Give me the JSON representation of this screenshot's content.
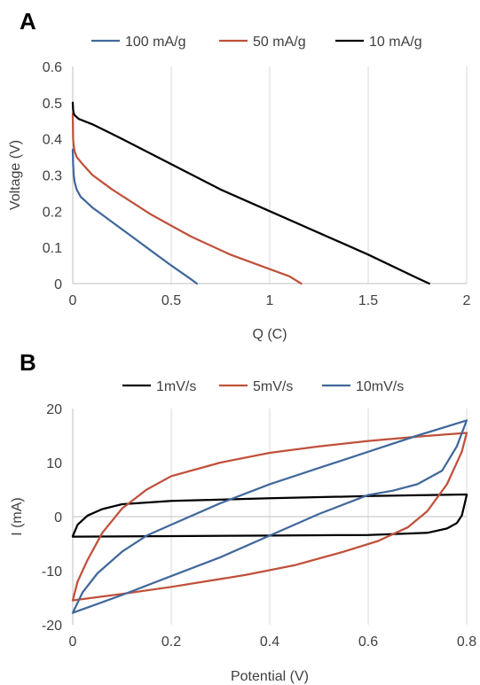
{
  "chart_data": [
    {
      "panel_label": "A",
      "type": "line",
      "title": "",
      "xlabel": "Q (C)",
      "ylabel": "Voltage (V)",
      "xlim": [
        0,
        2
      ],
      "ylim": [
        0,
        0.6
      ],
      "xticks": [
        "0",
        "0.5",
        "1",
        "1.5",
        "2"
      ],
      "yticks": [
        "0",
        "0.1",
        "0.2",
        "0.3",
        "0.4",
        "0.5",
        "0.6"
      ],
      "grid": "vertical",
      "legend": "top",
      "series": [
        {
          "name": "100 mA/g",
          "color": "#41689b",
          "x": [
            0.0,
            0.002,
            0.005,
            0.01,
            0.02,
            0.04,
            0.07,
            0.1,
            0.15,
            0.2,
            0.3,
            0.4,
            0.5,
            0.6,
            0.63
          ],
          "y": [
            0.37,
            0.33,
            0.3,
            0.28,
            0.26,
            0.24,
            0.225,
            0.21,
            0.19,
            0.17,
            0.13,
            0.09,
            0.05,
            0.012,
            0.0
          ]
        },
        {
          "name": "50 mA/g",
          "color": "#c0503a",
          "x": [
            0.0,
            0.002,
            0.005,
            0.01,
            0.02,
            0.05,
            0.1,
            0.2,
            0.4,
            0.6,
            0.8,
            1.0,
            1.1,
            1.16
          ],
          "y": [
            0.47,
            0.4,
            0.38,
            0.365,
            0.35,
            0.33,
            0.3,
            0.26,
            0.19,
            0.13,
            0.08,
            0.04,
            0.02,
            0.0
          ]
        },
        {
          "name": "10 mA/g",
          "color": "#000000",
          "x": [
            0.0,
            0.002,
            0.005,
            0.01,
            0.03,
            0.1,
            0.25,
            0.5,
            0.75,
            1.0,
            1.25,
            1.5,
            1.75,
            1.81
          ],
          "y": [
            0.5,
            0.48,
            0.47,
            0.465,
            0.455,
            0.44,
            0.4,
            0.33,
            0.26,
            0.2,
            0.14,
            0.08,
            0.015,
            0.0
          ]
        }
      ]
    },
    {
      "panel_label": "B",
      "type": "line",
      "title": "",
      "xlabel": "Potential (V)",
      "ylabel": "I (mA)",
      "xlim": [
        0,
        0.8
      ],
      "ylim": [
        -20,
        20
      ],
      "xticks": [
        "0",
        "0.2",
        "0.4",
        "0.6",
        "0.8"
      ],
      "yticks": [
        "-20",
        "-10",
        "0",
        "10",
        "20"
      ],
      "grid": "vertical",
      "legend": "top",
      "series": [
        {
          "name": "1mV/s",
          "color": "#000000",
          "x": [
            0.0,
            0.01,
            0.03,
            0.06,
            0.1,
            0.2,
            0.4,
            0.6,
            0.8,
            0.8,
            0.795,
            0.79,
            0.78,
            0.76,
            0.72,
            0.6,
            0.4,
            0.2,
            0.0,
            0.0
          ],
          "y": [
            -3.6,
            -1.5,
            0.2,
            1.4,
            2.3,
            2.9,
            3.4,
            3.8,
            4.1,
            4.0,
            2.0,
            0.2,
            -1.2,
            -2.2,
            -3.0,
            -3.4,
            -3.5,
            -3.6,
            -3.7,
            -3.6
          ]
        },
        {
          "name": "5mV/s",
          "color": "#c0503a",
          "x": [
            0.0,
            0.01,
            0.03,
            0.06,
            0.1,
            0.15,
            0.2,
            0.3,
            0.4,
            0.5,
            0.6,
            0.7,
            0.8,
            0.8,
            0.79,
            0.76,
            0.72,
            0.68,
            0.62,
            0.55,
            0.45,
            0.35,
            0.2,
            0.1,
            0.0
          ],
          "y": [
            -15.5,
            -12.0,
            -8.0,
            -3.0,
            1.5,
            5.0,
            7.5,
            10.0,
            11.8,
            13.0,
            14.0,
            14.8,
            15.5,
            15.5,
            12.0,
            6.0,
            1.0,
            -2.0,
            -4.5,
            -6.5,
            -9.0,
            -10.8,
            -13.0,
            -14.3,
            -15.5
          ]
        },
        {
          "name": "10mV/s",
          "color": "#41689b",
          "x": [
            0.0,
            0.02,
            0.05,
            0.1,
            0.15,
            0.2,
            0.3,
            0.4,
            0.5,
            0.6,
            0.7,
            0.8,
            0.8,
            0.78,
            0.75,
            0.7,
            0.65,
            0.6,
            0.5,
            0.4,
            0.3,
            0.2,
            0.1,
            0.0
          ],
          "y": [
            -17.8,
            -14.0,
            -10.5,
            -6.5,
            -3.5,
            -1.5,
            2.5,
            6.0,
            9.0,
            12.0,
            15.0,
            17.8,
            17.8,
            13.0,
            8.5,
            6.0,
            4.8,
            4.0,
            0.5,
            -3.5,
            -7.5,
            -11.0,
            -14.5,
            -17.8
          ]
        }
      ]
    }
  ]
}
